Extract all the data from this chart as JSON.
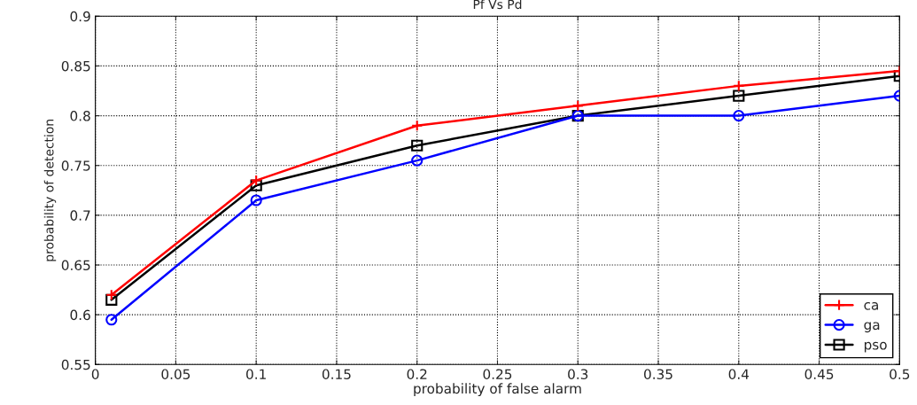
{
  "chart_data": {
    "type": "line",
    "title": "Pf Vs Pd",
    "xlabel": "probability of false alarm",
    "ylabel": "probability of detection",
    "x": [
      0.01,
      0.1,
      0.2,
      0.3,
      0.4,
      0.5
    ],
    "series": [
      {
        "name": "ca",
        "color": "#ff0000",
        "marker": "cross",
        "values": [
          0.62,
          0.735,
          0.79,
          0.81,
          0.83,
          0.845
        ]
      },
      {
        "name": "ga",
        "color": "#0000ff",
        "marker": "circle",
        "values": [
          0.595,
          0.715,
          0.755,
          0.8,
          0.8,
          0.82
        ]
      },
      {
        "name": "pso",
        "color": "#000000",
        "marker": "square",
        "values": [
          0.615,
          0.73,
          0.77,
          0.8,
          0.82,
          0.84
        ]
      }
    ],
    "xlim": [
      0,
      0.5
    ],
    "xticks": [
      0,
      0.05,
      0.1,
      0.15,
      0.2,
      0.25,
      0.3,
      0.35,
      0.4,
      0.45,
      0.5
    ],
    "ylim": [
      0.55,
      0.9
    ],
    "yticks": [
      0.55,
      0.6,
      0.65,
      0.7,
      0.75,
      0.8,
      0.85,
      0.9
    ],
    "grid": true,
    "legend": "bottom right",
    "line_style": "solid"
  }
}
